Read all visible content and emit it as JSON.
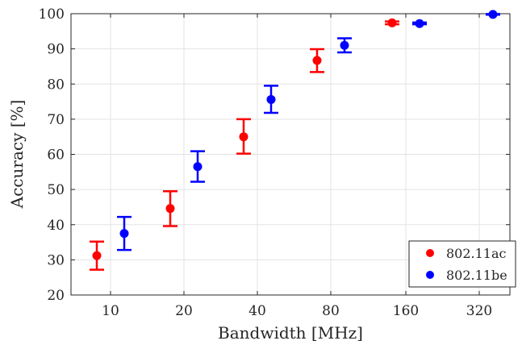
{
  "chart_data": {
    "type": "scatter",
    "xlabel": "Bandwidth [MHz]",
    "ylabel": "Accuracy [%]",
    "x_categories": [
      "10",
      "20",
      "40",
      "80",
      "160",
      "320"
    ],
    "yticks": [
      "20",
      "30",
      "40",
      "50",
      "60",
      "70",
      "80",
      "90",
      "100"
    ],
    "ylim": [
      20,
      100
    ],
    "grid": true,
    "legend_position": "bottom-right",
    "series": [
      {
        "name": "802.11ac",
        "color": "#ff0000",
        "points": [
          {
            "x": "10",
            "y": 31.2,
            "err_low": 27.2,
            "err_high": 35.2
          },
          {
            "x": "20",
            "y": 44.6,
            "err_low": 39.6,
            "err_high": 49.5
          },
          {
            "x": "40",
            "y": 65.0,
            "err_low": 60.2,
            "err_high": 70.0
          },
          {
            "x": "80",
            "y": 86.7,
            "err_low": 83.4,
            "err_high": 89.9
          },
          {
            "x": "160",
            "y": 97.4,
            "err_low": 97.0,
            "err_high": 97.8
          }
        ]
      },
      {
        "name": "802.11be",
        "color": "#0000ff",
        "points": [
          {
            "x": "10",
            "y": 37.5,
            "err_low": 32.8,
            "err_high": 42.2
          },
          {
            "x": "20",
            "y": 56.5,
            "err_low": 52.2,
            "err_high": 60.9
          },
          {
            "x": "40",
            "y": 75.6,
            "err_low": 71.8,
            "err_high": 79.5
          },
          {
            "x": "80",
            "y": 91.0,
            "err_low": 89.0,
            "err_high": 93.0
          },
          {
            "x": "160",
            "y": 97.2,
            "err_low": 97.0,
            "err_high": 97.5
          },
          {
            "x": "320",
            "y": 99.8,
            "err_low": 99.7,
            "err_high": 99.9
          }
        ]
      }
    ]
  }
}
